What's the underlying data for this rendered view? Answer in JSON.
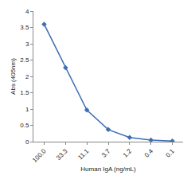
{
  "chart_data": {
    "type": "line",
    "x_label": "Human IgA (ng/mL)",
    "y_label": "Abs (405nm)",
    "categories": [
      "100.0",
      "33.3",
      "11.1",
      "3.7",
      "1.2",
      "0.4",
      "0.1"
    ],
    "values": [
      3.6,
      2.27,
      0.97,
      0.37,
      0.13,
      0.05,
      0.02
    ],
    "color": "#3d6eb4",
    "marker": "diamond",
    "ylim": [
      0,
      4
    ],
    "yticks": [
      0,
      0.5,
      1,
      1.5,
      2,
      2.5,
      3,
      3.5,
      4
    ],
    "grid": false
  }
}
